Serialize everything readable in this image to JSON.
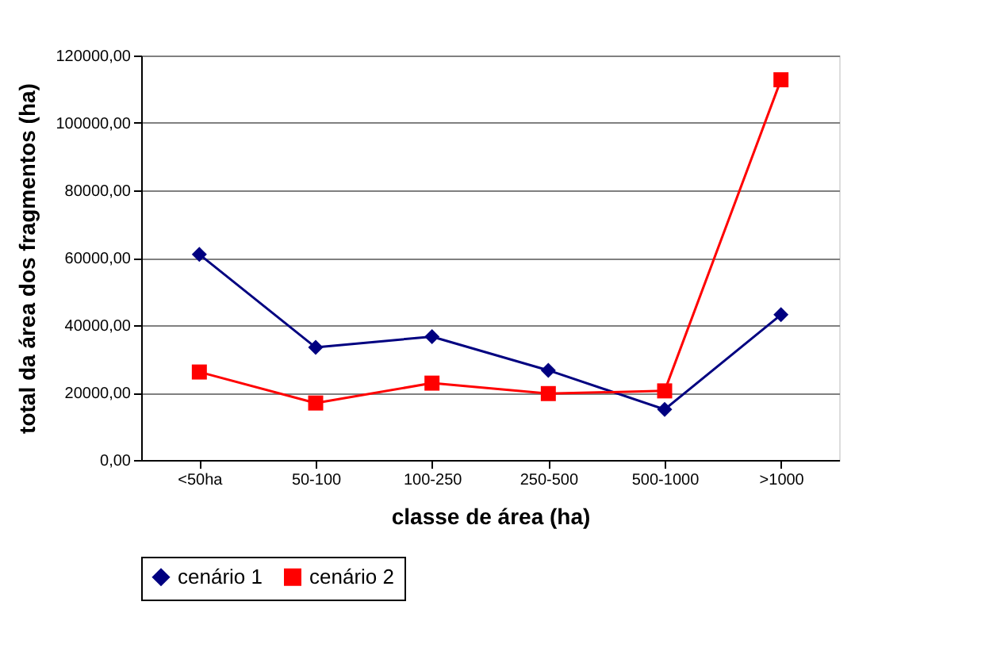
{
  "chart_data": {
    "type": "line",
    "xlabel": "classe de área (ha)",
    "ylabel": "total da área dos fragmentos (ha)",
    "categories": [
      "<50ha",
      "50-100",
      "100-250",
      "250-500",
      "500-1000",
      ">1000"
    ],
    "series": [
      {
        "name": "cenário 1",
        "color": "#000080",
        "marker": "diamond",
        "values": [
          61000,
          33400,
          36600,
          26600,
          15000,
          43100
        ]
      },
      {
        "name": "cenário 2",
        "color": "#ff0000",
        "marker": "square",
        "values": [
          26100,
          16900,
          22800,
          19700,
          20500,
          112800
        ]
      }
    ],
    "ylim": [
      0,
      120000
    ],
    "yticks": [
      {
        "value": 0,
        "label": "0,00"
      },
      {
        "value": 20000,
        "label": "20000,00"
      },
      {
        "value": 40000,
        "label": "40000,00"
      },
      {
        "value": 60000,
        "label": "60000,00"
      },
      {
        "value": 80000,
        "label": "80000,00"
      },
      {
        "value": 100000,
        "label": "100000,00"
      },
      {
        "value": 120000,
        "label": "120000,00"
      }
    ],
    "grid": "y",
    "legend": "bottom",
    "line_style": "solid"
  }
}
